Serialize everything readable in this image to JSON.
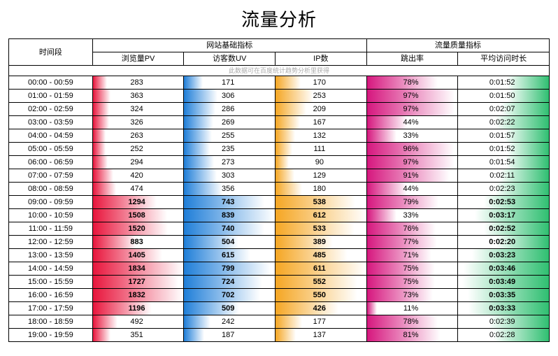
{
  "title": "流量分析",
  "note": "此数据可在百度统计趋势分析里获得",
  "headers": {
    "time": "时间段",
    "group1": "网站基础指标",
    "group2": "流量质量指标",
    "pv": "浏览量PV",
    "uv": "访客数UV",
    "ip": "IP数",
    "bounce": "跳出率",
    "duration": "平均访问时长"
  },
  "colors": {
    "pv": {
      "from": "#e8153c",
      "to": "#ffffff"
    },
    "uv": {
      "from": "#1f7ed8",
      "to": "#ffffff"
    },
    "ip": {
      "from": "#f5a623",
      "to": "#ffffff"
    },
    "bounce": {
      "from": "#d6177e",
      "to": "#ffffff"
    },
    "dur": {
      "from": "#2fbf71",
      "to": "#ffffff"
    },
    "border": "#000000",
    "text": "#000000"
  },
  "max": {
    "pv": 1834,
    "uv": 839,
    "ip": 612,
    "bounce": 100,
    "dur": 240
  },
  "bold_threshold_pv": 700,
  "rows": [
    {
      "time": "00:00 - 00:59",
      "pv": 283,
      "uv": 171,
      "ip": 170,
      "bounce": 78,
      "dur_s": 112,
      "dur": "0:01:52"
    },
    {
      "time": "01:00 - 01:59",
      "pv": 363,
      "uv": 306,
      "ip": 253,
      "bounce": 97,
      "dur_s": 110,
      "dur": "0:01:50"
    },
    {
      "time": "02:00 - 02:59",
      "pv": 324,
      "uv": 286,
      "ip": 209,
      "bounce": 97,
      "dur_s": 127,
      "dur": "0:02:07"
    },
    {
      "time": "03:00 - 03:59",
      "pv": 326,
      "uv": 269,
      "ip": 167,
      "bounce": 44,
      "dur_s": 142,
      "dur": "0:02:22"
    },
    {
      "time": "04:00 - 04:59",
      "pv": 263,
      "uv": 255,
      "ip": 132,
      "bounce": 33,
      "dur_s": 117,
      "dur": "0:01:57"
    },
    {
      "time": "05:00 - 05:59",
      "pv": 252,
      "uv": 235,
      "ip": 111,
      "bounce": 96,
      "dur_s": 112,
      "dur": "0:01:52"
    },
    {
      "time": "06:00 - 06:59",
      "pv": 294,
      "uv": 273,
      "ip": 90,
      "bounce": 97,
      "dur_s": 114,
      "dur": "0:01:54"
    },
    {
      "time": "07:00 - 07:59",
      "pv": 420,
      "uv": 303,
      "ip": 129,
      "bounce": 91,
      "dur_s": 131,
      "dur": "0:02:11"
    },
    {
      "time": "08:00 - 08:59",
      "pv": 474,
      "uv": 356,
      "ip": 180,
      "bounce": 44,
      "dur_s": 143,
      "dur": "0:02:23"
    },
    {
      "time": "09:00 - 09:59",
      "pv": 1294,
      "uv": 743,
      "ip": 538,
      "bounce": 79,
      "dur_s": 173,
      "dur": "0:02:53"
    },
    {
      "time": "10:00 - 10:59",
      "pv": 1508,
      "uv": 839,
      "ip": 612,
      "bounce": 33,
      "dur_s": 197,
      "dur": "0:03:17"
    },
    {
      "time": "11:00 - 11:59",
      "pv": 1520,
      "uv": 740,
      "ip": 533,
      "bounce": 76,
      "dur_s": 172,
      "dur": "0:02:52"
    },
    {
      "time": "12:00 - 12:59",
      "pv": 883,
      "uv": 504,
      "ip": 389,
      "bounce": 77,
      "dur_s": 140,
      "dur": "0:02:20"
    },
    {
      "time": "13:00 - 13:59",
      "pv": 1405,
      "uv": 615,
      "ip": 485,
      "bounce": 71,
      "dur_s": 203,
      "dur": "0:03:23"
    },
    {
      "time": "14:00 - 14:59",
      "pv": 1834,
      "uv": 799,
      "ip": 611,
      "bounce": 75,
      "dur_s": 226,
      "dur": "0:03:46"
    },
    {
      "time": "15:00 - 15:59",
      "pv": 1727,
      "uv": 724,
      "ip": 552,
      "bounce": 75,
      "dur_s": 229,
      "dur": "0:03:49"
    },
    {
      "time": "16:00 - 16:59",
      "pv": 1832,
      "uv": 702,
      "ip": 550,
      "bounce": 73,
      "dur_s": 215,
      "dur": "0:03:35"
    },
    {
      "time": "17:00 - 17:59",
      "pv": 1196,
      "uv": 509,
      "ip": 426,
      "bounce": 11,
      "dur_s": 213,
      "dur": "0:03:33"
    },
    {
      "time": "18:00 - 18:59",
      "pv": 492,
      "uv": 242,
      "ip": 177,
      "bounce": 78,
      "dur_s": 159,
      "dur": "0:02:39"
    },
    {
      "time": "19:00 - 19:59",
      "pv": 351,
      "uv": 187,
      "ip": 137,
      "bounce": 81,
      "dur_s": 148,
      "dur": "0:02:28"
    }
  ]
}
